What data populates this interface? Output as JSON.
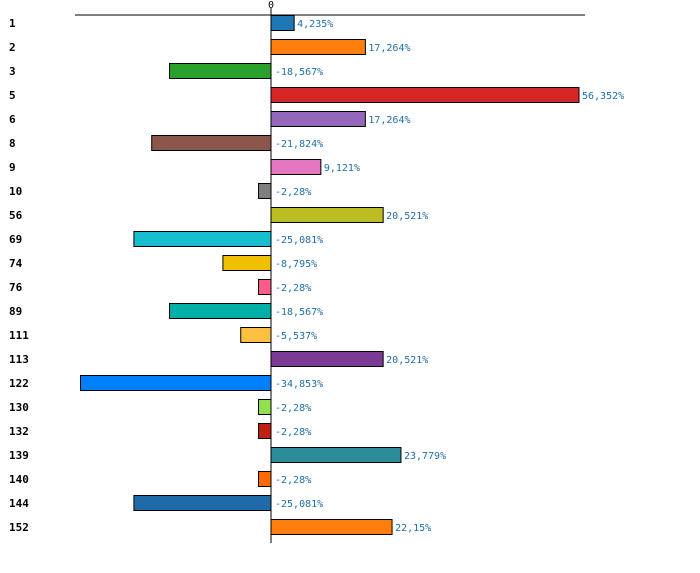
{
  "chart_data": {
    "type": "bar",
    "orientation": "horizontal",
    "title": "",
    "xlabel": "",
    "ylabel": "",
    "x_ticks": [
      "0"
    ],
    "grid": false,
    "legend": "none",
    "categories": [
      "1",
      "2",
      "3",
      "5",
      "6",
      "8",
      "9",
      "10",
      "56",
      "69",
      "74",
      "76",
      "89",
      "111",
      "113",
      "122",
      "130",
      "132",
      "139",
      "140",
      "144",
      "152"
    ],
    "values": [
      4.235,
      17.264,
      -18.567,
      56.352,
      17.264,
      -21.824,
      9.121,
      -2.28,
      20.521,
      -25.081,
      -8.795,
      -2.28,
      -18.567,
      -5.537,
      20.521,
      -34.853,
      -2.28,
      -2.28,
      23.779,
      -2.28,
      -25.081,
      22.15
    ],
    "value_labels": [
      "4,235%",
      "17,264%",
      "-18,567%",
      "56,352%",
      "17,264%",
      "-21,824%",
      "9,121%",
      "-2,28%",
      "20,521%",
      "-25,081%",
      "-8,795%",
      "-2,28%",
      "-18,567%",
      "-5,537%",
      "20,521%",
      "-34,853%",
      "-2,28%",
      "-2,28%",
      "23,779%",
      "-2,28%",
      "-25,081%",
      "22,15%"
    ],
    "colors": [
      "#1f77b4",
      "#ff7f0e",
      "#2ca02c",
      "#d62728",
      "#9467bd",
      "#8c564b",
      "#e377c2",
      "#7f7f7f",
      "#bcbd22",
      "#17becf",
      "#f0c000",
      "#ff5c8a",
      "#00b0a8",
      "#ffbf40",
      "#7b3a96",
      "#0080ff",
      "#90e050",
      "#c02010",
      "#2e8b9a",
      "#ff6a00",
      "#1f6aa8",
      "#ff7f0e"
    ]
  }
}
